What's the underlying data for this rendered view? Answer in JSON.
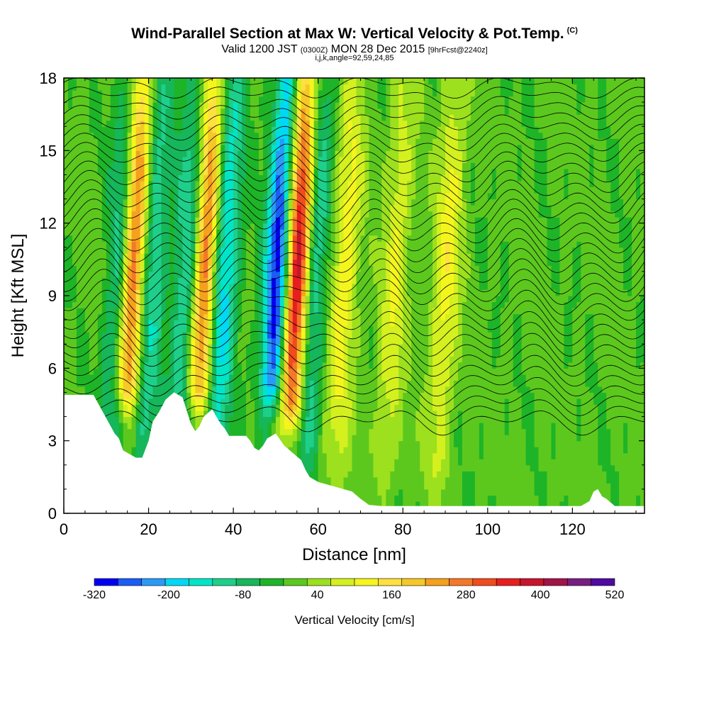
{
  "title": {
    "main": "Wind-Parallel Section at Max W: Vertical Velocity & Pot.Temp.",
    "tag": "(C)",
    "valid_prefix": "Valid 1200 JST",
    "valid_utc": "(0300Z)",
    "valid_date": "MON 28 Dec 2015",
    "forecast": "[9hrFcst@2240z]",
    "indices": "i,j,k,angle=92,59,24,85"
  },
  "chart_data": {
    "type": "heatmap",
    "xlabel": "Distance [nm]",
    "ylabel": "Height [Kft MSL]",
    "xlim": [
      0,
      137
    ],
    "ylim": [
      0,
      18
    ],
    "x_ticks": [
      0,
      20,
      40,
      60,
      80,
      100,
      120
    ],
    "y_ticks": [
      0,
      3,
      6,
      9,
      12,
      15,
      18
    ],
    "colorbar": {
      "label": "Vertical Velocity [cm/s]",
      "tick_labels": [
        "-320",
        "-200",
        "-80",
        "40",
        "160",
        "280",
        "400",
        "520"
      ],
      "levels": [
        -320,
        -280,
        -240,
        -200,
        -160,
        -120,
        -80,
        -40,
        0,
        40,
        80,
        120,
        160,
        200,
        240,
        280,
        320,
        360,
        400,
        440,
        480,
        520
      ],
      "colors": [
        "#0000f0",
        "#1a5cf5",
        "#2a9af5",
        "#00d8f5",
        "#00e5c8",
        "#1ecf8a",
        "#16b65a",
        "#1eb428",
        "#5cc81e",
        "#9ce01e",
        "#d4f01e",
        "#f5f51e",
        "#ffe040",
        "#f5c828",
        "#f5a01e",
        "#f57828",
        "#f04c1e",
        "#e81e1e",
        "#c8142c",
        "#a01446",
        "#781e82",
        "#500aa0"
      ]
    },
    "w_features": [
      {
        "x": 16,
        "w": 380,
        "base": 3.5
      },
      {
        "x": 13.3,
        "w": -160
      },
      {
        "x": 20.5,
        "w": -140
      },
      {
        "x": 33,
        "w": 340,
        "base": 3.5
      },
      {
        "x": 29,
        "w": -150
      },
      {
        "x": 37.5,
        "w": -200
      },
      {
        "x": 55,
        "w": 450,
        "base": 2.8
      },
      {
        "x": 50,
        "w": -320,
        "base": 3.5
      },
      {
        "x": 58.5,
        "w": -160
      },
      {
        "x": 66,
        "w": 140
      },
      {
        "x": 78,
        "w": 110
      },
      {
        "x": 90,
        "w": 130
      }
    ],
    "terrain_kft": [
      [
        0,
        4.9
      ],
      [
        7,
        4.9
      ],
      [
        12,
        3.3
      ],
      [
        13,
        3.1
      ],
      [
        14,
        2.6
      ],
      [
        17,
        2.3
      ],
      [
        18.5,
        2.3
      ],
      [
        20,
        3.0
      ],
      [
        21,
        3.8
      ],
      [
        22.5,
        4.2
      ],
      [
        24,
        4.7
      ],
      [
        26,
        5.0
      ],
      [
        28,
        4.8
      ],
      [
        30,
        3.7
      ],
      [
        31,
        3.4
      ],
      [
        32,
        3.6
      ],
      [
        33,
        4.0
      ],
      [
        35,
        4.3
      ],
      [
        37,
        3.7
      ],
      [
        38,
        3.5
      ],
      [
        39,
        3.2
      ],
      [
        41,
        3.2
      ],
      [
        43,
        3.2
      ],
      [
        44,
        3.0
      ],
      [
        45,
        2.7
      ],
      [
        46,
        2.6
      ],
      [
        47,
        2.8
      ],
      [
        48,
        3.1
      ],
      [
        50,
        3.3
      ],
      [
        52,
        2.8
      ],
      [
        54,
        2.5
      ],
      [
        56,
        2.2
      ],
      [
        57,
        1.8
      ],
      [
        58,
        1.5
      ],
      [
        60,
        1.3
      ],
      [
        62,
        1.2
      ],
      [
        64,
        1.1
      ],
      [
        66,
        1.0
      ],
      [
        68,
        0.9
      ],
      [
        70,
        0.6
      ],
      [
        72,
        0.35
      ],
      [
        75,
        0.3
      ],
      [
        122,
        0.3
      ],
      [
        124,
        0.5
      ],
      [
        125,
        0.9
      ],
      [
        126,
        1.0
      ],
      [
        127,
        0.7
      ],
      [
        128,
        0.6
      ],
      [
        130,
        0.3
      ],
      [
        137,
        0.3
      ]
    ]
  }
}
